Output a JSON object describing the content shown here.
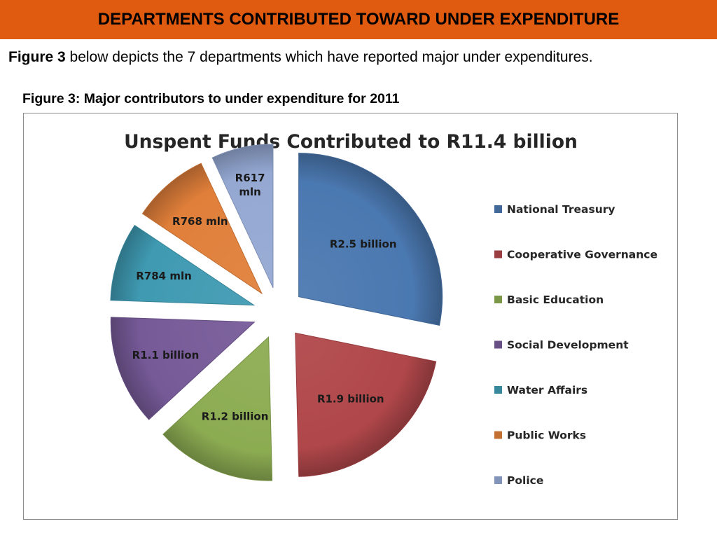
{
  "header": {
    "title": "DEPARTMENTS CONTRIBUTED TOWARD UNDER EXPENDITURE"
  },
  "intro": {
    "figure_ref": "Figure 3",
    "text": " below depicts the 7 departments which have reported major under expenditures."
  },
  "caption": "Figure 3: Major contributors to under expenditure for 2011",
  "colors": {
    "banner": "#e05a10"
  },
  "chart_data": {
    "type": "pie",
    "title": "Unspent Funds Contributed to R11.4 billion",
    "legend_position": "right",
    "exploded": true,
    "categories": [
      "National Treasury",
      "Cooperative Governance",
      "Basic Education",
      "Social Development",
      "Water Affairs",
      "Public Works",
      "Police"
    ],
    "values": [
      2.5,
      1.9,
      1.2,
      1.1,
      0.784,
      0.768,
      0.617
    ],
    "unit": "R billion",
    "labels": [
      "R2.5 billion",
      "R1.9 billion",
      "R1.2 billion",
      "R1.1 billion",
      "R784 mln",
      "R768 mln",
      "R617 mln"
    ],
    "colors": [
      "#4a78b0",
      "#b0474a",
      "#8cac52",
      "#765a98",
      "#3f9ab2",
      "#e07f3a",
      "#94a8d2"
    ]
  }
}
